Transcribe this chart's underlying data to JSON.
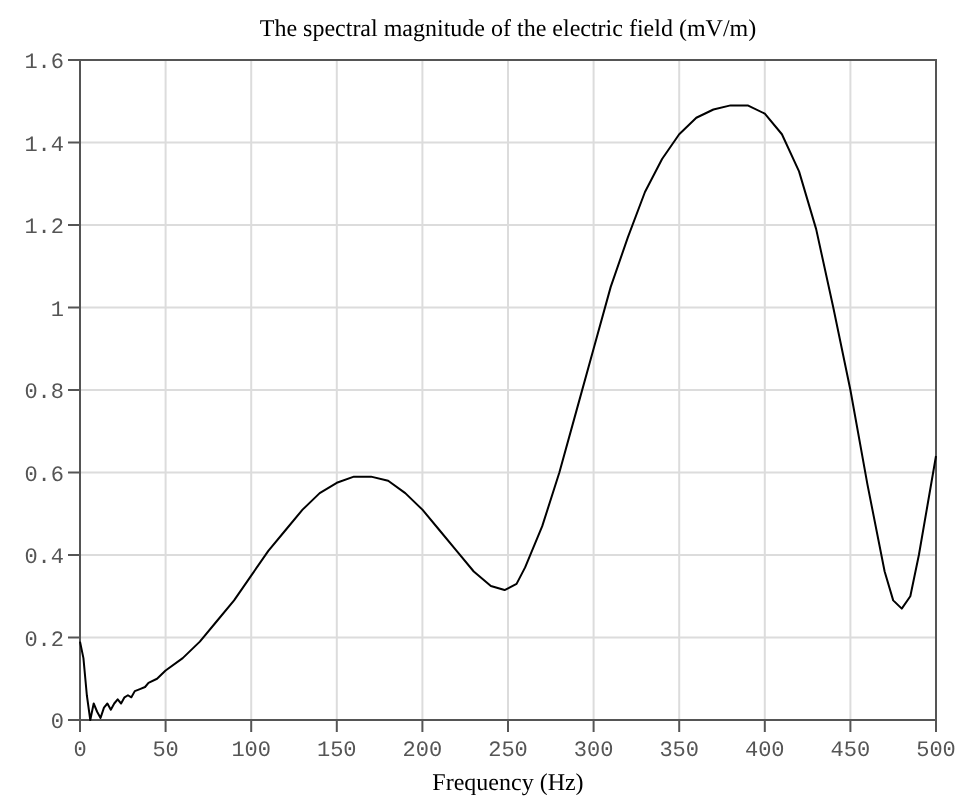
{
  "chart_data": {
    "type": "line",
    "title": "The spectral magnitude of the electric field (mV/m)",
    "xlabel": "Frequency (Hz)",
    "x": [
      0,
      2,
      4,
      6,
      8,
      10,
      12,
      14,
      16,
      18,
      20,
      22,
      24,
      26,
      28,
      30,
      32,
      35,
      38,
      40,
      45,
      50,
      60,
      70,
      80,
      90,
      100,
      110,
      120,
      130,
      140,
      150,
      160,
      170,
      180,
      190,
      200,
      210,
      220,
      230,
      240,
      248,
      255,
      260,
      270,
      280,
      290,
      300,
      310,
      320,
      330,
      340,
      350,
      360,
      370,
      380,
      390,
      400,
      410,
      420,
      430,
      440,
      450,
      460,
      470,
      475,
      480,
      485,
      490,
      495,
      500
    ],
    "series": [
      {
        "color": "#000000",
        "values": [
          0.19,
          0.15,
          0.06,
          0.0,
          0.04,
          0.02,
          0.005,
          0.03,
          0.04,
          0.025,
          0.04,
          0.05,
          0.04,
          0.055,
          0.06,
          0.055,
          0.07,
          0.075,
          0.08,
          0.09,
          0.1,
          0.12,
          0.15,
          0.19,
          0.24,
          0.29,
          0.35,
          0.41,
          0.46,
          0.51,
          0.55,
          0.575,
          0.59,
          0.59,
          0.58,
          0.55,
          0.51,
          0.46,
          0.41,
          0.36,
          0.325,
          0.315,
          0.33,
          0.37,
          0.47,
          0.6,
          0.75,
          0.9,
          1.05,
          1.17,
          1.28,
          1.36,
          1.42,
          1.46,
          1.48,
          1.49,
          1.49,
          1.47,
          1.42,
          1.33,
          1.19,
          1.0,
          0.8,
          0.57,
          0.36,
          0.29,
          0.27,
          0.3,
          0.4,
          0.52,
          0.64
        ]
      }
    ],
    "xlim": [
      0,
      500
    ],
    "xticks": [
      0,
      50,
      100,
      150,
      200,
      250,
      300,
      350,
      400,
      450,
      500
    ],
    "ylim": [
      0,
      1.6
    ],
    "yticks": [
      0,
      0.2,
      0.4,
      0.6,
      0.8,
      1,
      1.2,
      1.4,
      1.6
    ],
    "grid": true,
    "marker": "none",
    "line_style": "solid"
  }
}
